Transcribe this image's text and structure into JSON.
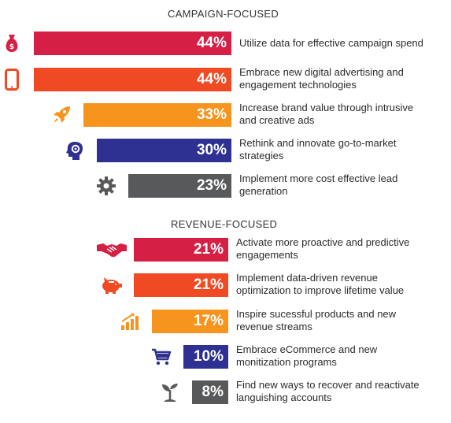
{
  "sections": [
    {
      "title": "CAMPAIGN-FOCUSED"
    },
    {
      "title": "REVENUE-FOCUSED"
    }
  ],
  "items": [
    {
      "value": "44%",
      "label": "Utilize data for effective campaign spend",
      "color": "#d61f45",
      "icon": "money-bag-icon",
      "section": 0
    },
    {
      "value": "44%",
      "label": "Embrace new digital advertising and\nengagement technologies",
      "color": "#ef4a23",
      "icon": "smartphone-icon",
      "section": 0
    },
    {
      "value": "33%",
      "label": "Increase brand value through intrusive\nand creative ads",
      "color": "#f7941d",
      "icon": "rocket-icon",
      "section": 0
    },
    {
      "value": "30%",
      "label": "Rethink and innovate go-to-market\nstrategies",
      "color": "#2e3192",
      "icon": "head-gear-icon",
      "section": 0
    },
    {
      "value": "23%",
      "label": "Implement more cost effective lead\ngeneration",
      "color": "#58595b",
      "icon": "gear-icon",
      "section": 0
    },
    {
      "value": "21%",
      "label": "Activate more proactive and predictive\nengagements",
      "color": "#d61f45",
      "icon": "handshake-icon",
      "section": 1
    },
    {
      "value": "21%",
      "label": "Implement data-driven revenue\noptimization to improve lifetime value",
      "color": "#ef4a23",
      "icon": "piggy-bank-icon",
      "section": 1
    },
    {
      "value": "17%",
      "label": "Inspire sucessful products and new\nrevenue streams",
      "color": "#f7941d",
      "icon": "growth-chart-icon",
      "section": 1
    },
    {
      "value": "10%",
      "label": "Embrace eCommerce and new\nmonitization programs",
      "color": "#2e3192",
      "icon": "shopping-cart-icon",
      "section": 1
    },
    {
      "value": "8%",
      "label": "Find new ways to recover and reactivate\nlanguishing accounts",
      "color": "#58595b",
      "icon": "sprout-icon",
      "section": 1
    }
  ],
  "chart_data": {
    "type": "bar",
    "groups": [
      {
        "title": "CAMPAIGN-FOCUSED",
        "categories": [
          "Utilize data for effective campaign spend",
          "Embrace new digital advertising and engagement technologies",
          "Increase brand value through intrusive and creative ads",
          "Rethink and innovate go-to-market strategies",
          "Implement more cost effective lead generation"
        ],
        "values": [
          44,
          44,
          33,
          30,
          23
        ]
      },
      {
        "title": "REVENUE-FOCUSED",
        "categories": [
          "Activate more proactive and predictive engagements",
          "Implement data-driven revenue optimization to improve lifetime value",
          "Inspire sucessful products and new revenue streams",
          "Embrace eCommerce and new monitization programs",
          "Find new ways to recover and reactivate languishing accounts"
        ],
        "values": [
          21,
          21,
          17,
          10,
          8
        ]
      }
    ],
    "orientation": "horizontal",
    "grid": false,
    "legend": "none"
  }
}
